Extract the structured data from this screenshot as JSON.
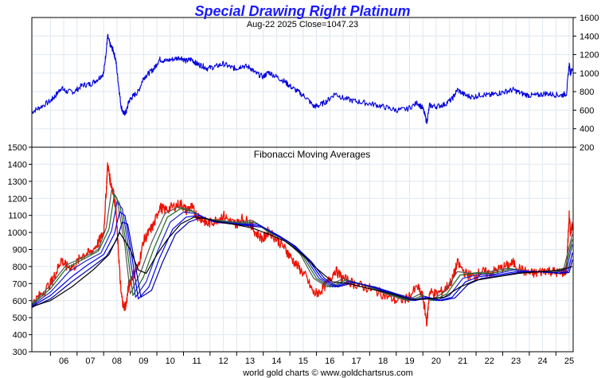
{
  "chart_data": [
    {
      "type": "line",
      "title": "Special Drawing Right Platinum",
      "subtitle": "Aug-22  2025   Close=1047.23",
      "x_tick_labels": [
        "06",
        "07",
        "08",
        "09",
        "10",
        "11",
        "12",
        "13",
        "14",
        "15",
        "16",
        "17",
        "18",
        "19",
        "20",
        "21",
        "22",
        "23",
        "24",
        "25"
      ],
      "y_ticks": [
        200,
        400,
        600,
        800,
        1000,
        1200,
        1400,
        1600
      ],
      "ylim": [
        200,
        1600
      ],
      "y_axis_side": "right",
      "grid": true,
      "series": [
        {
          "color": "#0000dd",
          "x": [
            2005.3,
            2005.6,
            2006.0,
            2006.2,
            2006.4,
            2006.6,
            2006.9,
            2007.2,
            2007.5,
            2007.8,
            2008.0,
            2008.1,
            2008.15,
            2008.25,
            2008.35,
            2008.45,
            2008.55,
            2008.65,
            2008.75,
            2008.85,
            2008.95,
            2009.1,
            2009.3,
            2009.5,
            2009.7,
            2009.9,
            2010.1,
            2010.3,
            2010.6,
            2010.9,
            2011.1,
            2011.3,
            2011.5,
            2011.7,
            2011.9,
            2012.2,
            2012.5,
            2012.8,
            2013.0,
            2013.2,
            2013.5,
            2013.7,
            2014.0,
            2014.2,
            2014.5,
            2014.8,
            2015.0,
            2015.3,
            2015.6,
            2015.9,
            2016.1,
            2016.4,
            2016.7,
            2017.0,
            2017.4,
            2017.8,
            2018.2,
            2018.6,
            2019.0,
            2019.4,
            2019.8,
            2020.0,
            2020.15,
            2020.25,
            2020.5,
            2020.8,
            2021.1,
            2021.3,
            2021.6,
            2021.9,
            2022.2,
            2022.5,
            2022.8,
            2023.1,
            2023.4,
            2023.7,
            2024.0,
            2024.3,
            2024.6,
            2024.9,
            2025.2,
            2025.4,
            2025.5,
            2025.55,
            2025.62
          ],
          "y": [
            580,
            630,
            700,
            760,
            840,
            800,
            800,
            870,
            880,
            940,
            1000,
            1250,
            1400,
            1300,
            1250,
            1150,
            900,
            650,
            560,
            580,
            700,
            750,
            800,
            950,
            1000,
            1050,
            1150,
            1130,
            1150,
            1170,
            1130,
            1150,
            1100,
            1080,
            1050,
            1070,
            1100,
            1060,
            1050,
            1080,
            1060,
            1000,
            960,
            1010,
            960,
            910,
            860,
            800,
            740,
            640,
            650,
            700,
            780,
            730,
            700,
            680,
            660,
            630,
            600,
            610,
            680,
            620,
            470,
            650,
            640,
            660,
            720,
            820,
            760,
            740,
            770,
            760,
            780,
            800,
            820,
            780,
            760,
            760,
            780,
            770,
            760,
            780,
            1100,
            1000,
            1047
          ]
        }
      ]
    },
    {
      "type": "line",
      "title": "Fibonacci Moving Averages",
      "x_tick_labels": [
        "06",
        "07",
        "08",
        "09",
        "10",
        "11",
        "12",
        "13",
        "14",
        "15",
        "16",
        "17",
        "18",
        "19",
        "20",
        "21",
        "22",
        "23",
        "24",
        "25"
      ],
      "y_ticks": [
        300,
        400,
        500,
        600,
        700,
        800,
        900,
        1000,
        1100,
        1200,
        1300,
        1400,
        1500
      ],
      "ylim": [
        300,
        1500
      ],
      "y_axis_side": "left",
      "grid": true,
      "series": [
        {
          "color": "#ee1100",
          "x": [
            2005.3,
            2005.6,
            2006.0,
            2006.2,
            2006.4,
            2006.6,
            2006.9,
            2007.2,
            2007.5,
            2007.8,
            2008.0,
            2008.1,
            2008.15,
            2008.25,
            2008.35,
            2008.45,
            2008.55,
            2008.65,
            2008.75,
            2008.85,
            2008.95,
            2009.1,
            2009.3,
            2009.5,
            2009.7,
            2009.9,
            2010.1,
            2010.3,
            2010.6,
            2010.9,
            2011.1,
            2011.3,
            2011.5,
            2011.7,
            2011.9,
            2012.2,
            2012.5,
            2012.8,
            2013.0,
            2013.2,
            2013.5,
            2013.7,
            2014.0,
            2014.2,
            2014.5,
            2014.8,
            2015.0,
            2015.3,
            2015.6,
            2015.9,
            2016.1,
            2016.4,
            2016.7,
            2017.0,
            2017.4,
            2017.8,
            2018.2,
            2018.6,
            2019.0,
            2019.4,
            2019.8,
            2020.0,
            2020.15,
            2020.25,
            2020.5,
            2020.8,
            2021.1,
            2021.3,
            2021.6,
            2021.9,
            2022.2,
            2022.5,
            2022.8,
            2023.1,
            2023.4,
            2023.7,
            2024.0,
            2024.3,
            2024.6,
            2024.9,
            2025.2,
            2025.4,
            2025.5,
            2025.55,
            2025.62
          ],
          "y": [
            580,
            630,
            700,
            760,
            840,
            800,
            800,
            870,
            880,
            940,
            1000,
            1250,
            1400,
            1300,
            1250,
            1150,
            900,
            650,
            560,
            580,
            700,
            750,
            800,
            950,
            1000,
            1050,
            1150,
            1130,
            1150,
            1170,
            1130,
            1150,
            1100,
            1080,
            1050,
            1070,
            1100,
            1060,
            1050,
            1080,
            1060,
            1000,
            960,
            1010,
            960,
            910,
            860,
            800,
            740,
            640,
            650,
            700,
            780,
            730,
            700,
            680,
            660,
            630,
            600,
            610,
            680,
            620,
            470,
            650,
            640,
            660,
            720,
            820,
            760,
            740,
            770,
            760,
            780,
            800,
            820,
            780,
            760,
            760,
            780,
            770,
            760,
            780,
            1100,
            1000,
            1047
          ]
        },
        {
          "color": "#555555",
          "x": [
            2005.3,
            2006.0,
            2006.6,
            2007.2,
            2007.8,
            2008.1,
            2008.3,
            2008.5,
            2008.8,
            2009.0,
            2009.4,
            2009.8,
            2010.3,
            2010.8,
            2011.3,
            2011.8,
            2012.4,
            2013.0,
            2013.6,
            2014.2,
            2014.8,
            2015.4,
            2015.9,
            2016.4,
            2017.0,
            2017.8,
            2018.6,
            2019.4,
            2019.9,
            2020.3,
            2020.8,
            2021.3,
            2021.8,
            2022.5,
            2023.2,
            2024.0,
            2024.8,
            2025.3,
            2025.62
          ],
          "y": [
            580,
            690,
            810,
            850,
            900,
            1030,
            1250,
            1200,
            920,
            640,
            770,
            940,
            1110,
            1150,
            1130,
            1080,
            1070,
            1060,
            1070,
            1000,
            960,
            870,
            730,
            680,
            730,
            690,
            640,
            600,
            640,
            600,
            650,
            770,
            760,
            770,
            790,
            770,
            770,
            790,
            990
          ]
        },
        {
          "color": "#1f6b1f",
          "x": [
            2005.3,
            2006.0,
            2006.6,
            2007.2,
            2007.8,
            2008.2,
            2008.4,
            2008.6,
            2008.9,
            2009.1,
            2009.5,
            2009.9,
            2010.4,
            2010.9,
            2011.4,
            2011.9,
            2012.5,
            2013.1,
            2013.7,
            2014.3,
            2014.9,
            2015.5,
            2016.0,
            2016.5,
            2017.1,
            2017.9,
            2018.7,
            2019.5,
            2020.0,
            2020.4,
            2020.9,
            2021.4,
            2021.9,
            2022.6,
            2023.3,
            2024.1,
            2024.9,
            2025.35,
            2025.62
          ],
          "y": [
            575,
            670,
            790,
            840,
            890,
            1020,
            1220,
            1170,
            880,
            630,
            740,
            910,
            1090,
            1140,
            1120,
            1075,
            1065,
            1055,
            1060,
            995,
            950,
            860,
            730,
            680,
            720,
            690,
            640,
            600,
            630,
            600,
            640,
            750,
            760,
            760,
            785,
            770,
            765,
            785,
            960
          ]
        },
        {
          "color": "#2222cc",
          "x": [
            2005.3,
            2006.0,
            2006.7,
            2007.3,
            2007.9,
            2008.3,
            2008.5,
            2008.7,
            2009.0,
            2009.2,
            2009.6,
            2010.0,
            2010.5,
            2011.0,
            2011.5,
            2012.0,
            2012.6,
            2013.2,
            2013.8,
            2014.4,
            2015.0,
            2015.6,
            2016.1,
            2016.6,
            2017.2,
            2018.0,
            2018.8,
            2019.6,
            2020.1,
            2020.5,
            2021.0,
            2021.5,
            2022.0,
            2022.7,
            2023.4,
            2024.2,
            2025.0,
            2025.4,
            2025.62
          ],
          "y": [
            570,
            650,
            770,
            830,
            880,
            1010,
            1180,
            1140,
            850,
            620,
            710,
            880,
            1060,
            1120,
            1110,
            1070,
            1060,
            1050,
            1050,
            990,
            940,
            850,
            730,
            680,
            715,
            685,
            640,
            600,
            625,
            600,
            630,
            730,
            750,
            755,
            780,
            770,
            765,
            780,
            930
          ]
        },
        {
          "color": "#0000ee",
          "x": [
            2005.3,
            2006.0,
            2006.8,
            2007.4,
            2008.0,
            2008.4,
            2008.6,
            2008.8,
            2009.1,
            2009.3,
            2009.7,
            2010.1,
            2010.6,
            2011.1,
            2011.6,
            2012.1,
            2012.7,
            2013.3,
            2013.9,
            2014.5,
            2015.1,
            2015.7,
            2016.2,
            2016.7,
            2017.3,
            2018.1,
            2018.9,
            2019.7,
            2020.2,
            2020.6,
            2021.1,
            2021.6,
            2022.1,
            2022.8,
            2023.5,
            2024.3,
            2025.1,
            2025.45,
            2025.62
          ],
          "y": [
            565,
            630,
            740,
            810,
            870,
            990,
            1120,
            1100,
            820,
            610,
            680,
            850,
            1020,
            1090,
            1100,
            1065,
            1055,
            1045,
            1040,
            985,
            930,
            840,
            730,
            680,
            710,
            680,
            640,
            600,
            620,
            600,
            620,
            710,
            740,
            750,
            770,
            770,
            760,
            770,
            880
          ]
        },
        {
          "color": "#0000aa",
          "x": [
            2005.3,
            2006.0,
            2006.8,
            2007.5,
            2008.1,
            2008.5,
            2008.7,
            2008.9,
            2009.2,
            2009.4,
            2009.8,
            2010.2,
            2010.7,
            2011.2,
            2011.7,
            2012.2,
            2012.8,
            2013.4,
            2014.0,
            2014.6,
            2015.2,
            2015.8,
            2016.3,
            2016.8,
            2017.4,
            2018.2,
            2019.0,
            2019.8,
            2020.3,
            2020.7,
            2021.2,
            2021.7,
            2022.2,
            2022.9,
            2023.6,
            2024.4,
            2025.2,
            2025.5,
            2025.62
          ],
          "y": [
            560,
            610,
            710,
            790,
            860,
            960,
            1060,
            1050,
            800,
            620,
            660,
            820,
            990,
            1060,
            1090,
            1060,
            1050,
            1040,
            1030,
            980,
            920,
            830,
            730,
            680,
            705,
            680,
            640,
            605,
            615,
            600,
            615,
            695,
            730,
            745,
            765,
            770,
            760,
            765,
            840
          ]
        },
        {
          "color": "#000000",
          "x": [
            2005.3,
            2006.0,
            2006.8,
            2007.6,
            2008.2,
            2008.6,
            2009.0,
            2009.3,
            2009.6,
            2010.0,
            2010.4,
            2010.9,
            2011.4,
            2011.9,
            2012.4,
            2013.0,
            2013.6,
            2014.2,
            2014.8,
            2015.4,
            2016.0,
            2016.6,
            2017.2,
            2018.0,
            2018.8,
            2019.6,
            2020.2,
            2020.8,
            2021.4,
            2022.0,
            2022.8,
            2023.6,
            2024.4,
            2025.2,
            2025.62
          ],
          "y": [
            565,
            600,
            680,
            780,
            870,
            1000,
            900,
            780,
            760,
            870,
            960,
            1050,
            1090,
            1080,
            1060,
            1045,
            1025,
            990,
            950,
            880,
            790,
            710,
            700,
            670,
            640,
            605,
            610,
            620,
            680,
            720,
            740,
            760,
            770,
            780,
            800
          ]
        }
      ]
    }
  ],
  "footer": "world gold charts © www.goldchartsrus.com"
}
